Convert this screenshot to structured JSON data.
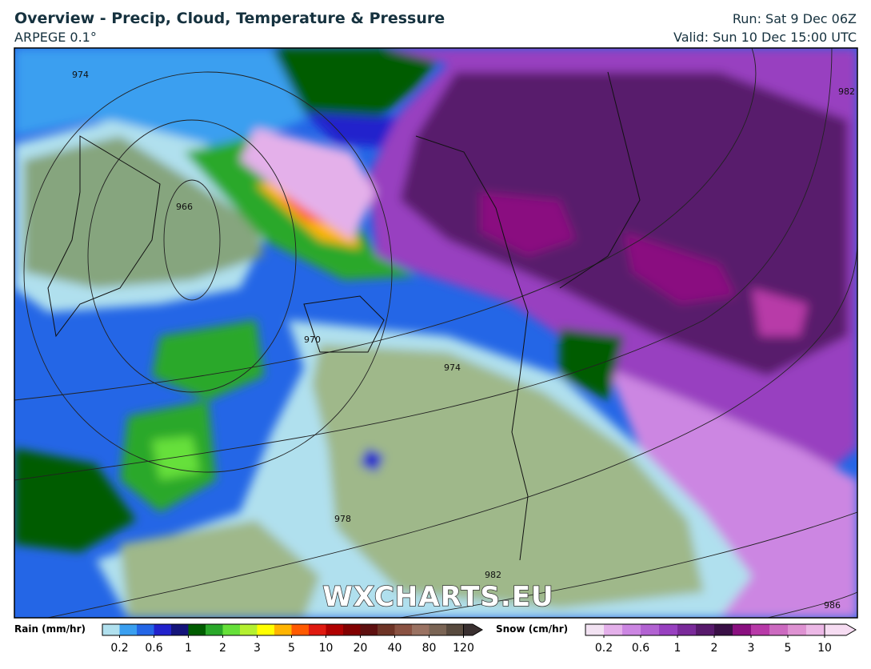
{
  "header": {
    "title": "Overview - Precip, Cloud, Temperature & Pressure",
    "model": "ARPEGE 0.1°",
    "run": "Run: Sat 9 Dec 06Z",
    "valid": "Valid: Sun 10 Dec 15:00 UTC"
  },
  "map": {
    "watermark": "WXCHARTS.EU",
    "isobar_labels": [
      "974",
      "966",
      "970",
      "974",
      "978",
      "982",
      "982",
      "986"
    ]
  },
  "legend": {
    "rain": {
      "label": "Rain (mm/hr)",
      "colors": [
        "#b0e0ee",
        "#3a9ff0",
        "#2466e6",
        "#2222cc",
        "#14147a",
        "#005c00",
        "#2aa82a",
        "#66e03a",
        "#b4f030",
        "#ffff00",
        "#ffb400",
        "#ff5a00",
        "#e01a10",
        "#b00000",
        "#820000",
        "#5e1010",
        "#6e3426",
        "#8a5242",
        "#9a7262",
        "#7a6454",
        "#584a3e",
        "#3a3030"
      ],
      "ticks": [
        "0.2",
        "0.6",
        "1",
        "2",
        "3",
        "5",
        "10",
        "20",
        "40",
        "80",
        "120"
      ]
    },
    "snow": {
      "label": "Snow (cm/hr)",
      "colors": [
        "#f2e2f2",
        "#e4b0ea",
        "#cc86e2",
        "#b262d2",
        "#9840c0",
        "#7a2a9a",
        "#581a6c",
        "#3a1046",
        "#8a1080",
        "#b83aa8",
        "#cc6ac0",
        "#de92d2",
        "#ecb8e6",
        "#f6dcf2"
      ],
      "ticks": [
        "0.2",
        "0.6",
        "1",
        "2",
        "3",
        "5",
        "10"
      ]
    }
  }
}
